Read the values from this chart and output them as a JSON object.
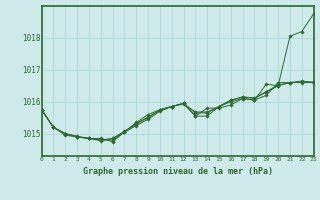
{
  "title": "Graphe pression niveau de la mer (hPa)",
  "bg_color": "#ceeaea",
  "plot_bg_color": "#ceeaea",
  "outer_bg": "#2d6a2d",
  "grid_color": "#a8d4d4",
  "line_color": "#2d6a2d",
  "border_color": "#2d6a2d",
  "label_color": "#2d6a2d",
  "x_labels": [
    "0",
    "1",
    "2",
    "3",
    "4",
    "5",
    "6",
    "7",
    "8",
    "9",
    "10",
    "11",
    "12",
    "13",
    "14",
    "15",
    "16",
    "17",
    "18",
    "19",
    "20",
    "21",
    "22",
    "23"
  ],
  "y_ticks": [
    1015,
    1016,
    1017,
    1018
  ],
  "ylim": [
    1014.3,
    1019.0
  ],
  "xlim": [
    0,
    23
  ],
  "series": [
    [
      1015.75,
      1015.2,
      1014.95,
      1014.9,
      1014.85,
      1014.85,
      1014.75,
      1015.05,
      1015.35,
      1015.6,
      1015.75,
      1015.85,
      1015.95,
      1015.55,
      1015.8,
      1015.8,
      1015.9,
      1016.1,
      1016.05,
      1016.55,
      1016.5,
      1018.05,
      1018.2,
      1018.75
    ],
    [
      1015.75,
      1015.2,
      1015.0,
      1014.9,
      1014.85,
      1014.8,
      1014.8,
      1015.05,
      1015.25,
      1015.45,
      1015.7,
      1015.85,
      1015.95,
      1015.55,
      1015.55,
      1015.85,
      1016.0,
      1016.1,
      1016.05,
      1016.2,
      1016.6,
      1016.6,
      1016.65,
      1016.6
    ],
    [
      1015.75,
      1015.2,
      1015.0,
      1014.9,
      1014.85,
      1014.8,
      1014.85,
      1015.05,
      1015.3,
      1015.5,
      1015.75,
      1015.85,
      1015.95,
      1015.65,
      1015.65,
      1015.85,
      1016.05,
      1016.15,
      1016.1,
      1016.3,
      1016.5,
      1016.6,
      1016.6,
      1016.6
    ],
    [
      1015.75,
      1015.2,
      1015.0,
      1014.92,
      1014.85,
      1014.78,
      1014.85,
      1015.07,
      1015.32,
      1015.52,
      1015.73,
      1015.85,
      1015.93,
      1015.68,
      1015.68,
      1015.85,
      1016.05,
      1016.15,
      1016.12,
      1016.32,
      1016.52,
      1016.6,
      1016.62,
      1016.62
    ]
  ]
}
